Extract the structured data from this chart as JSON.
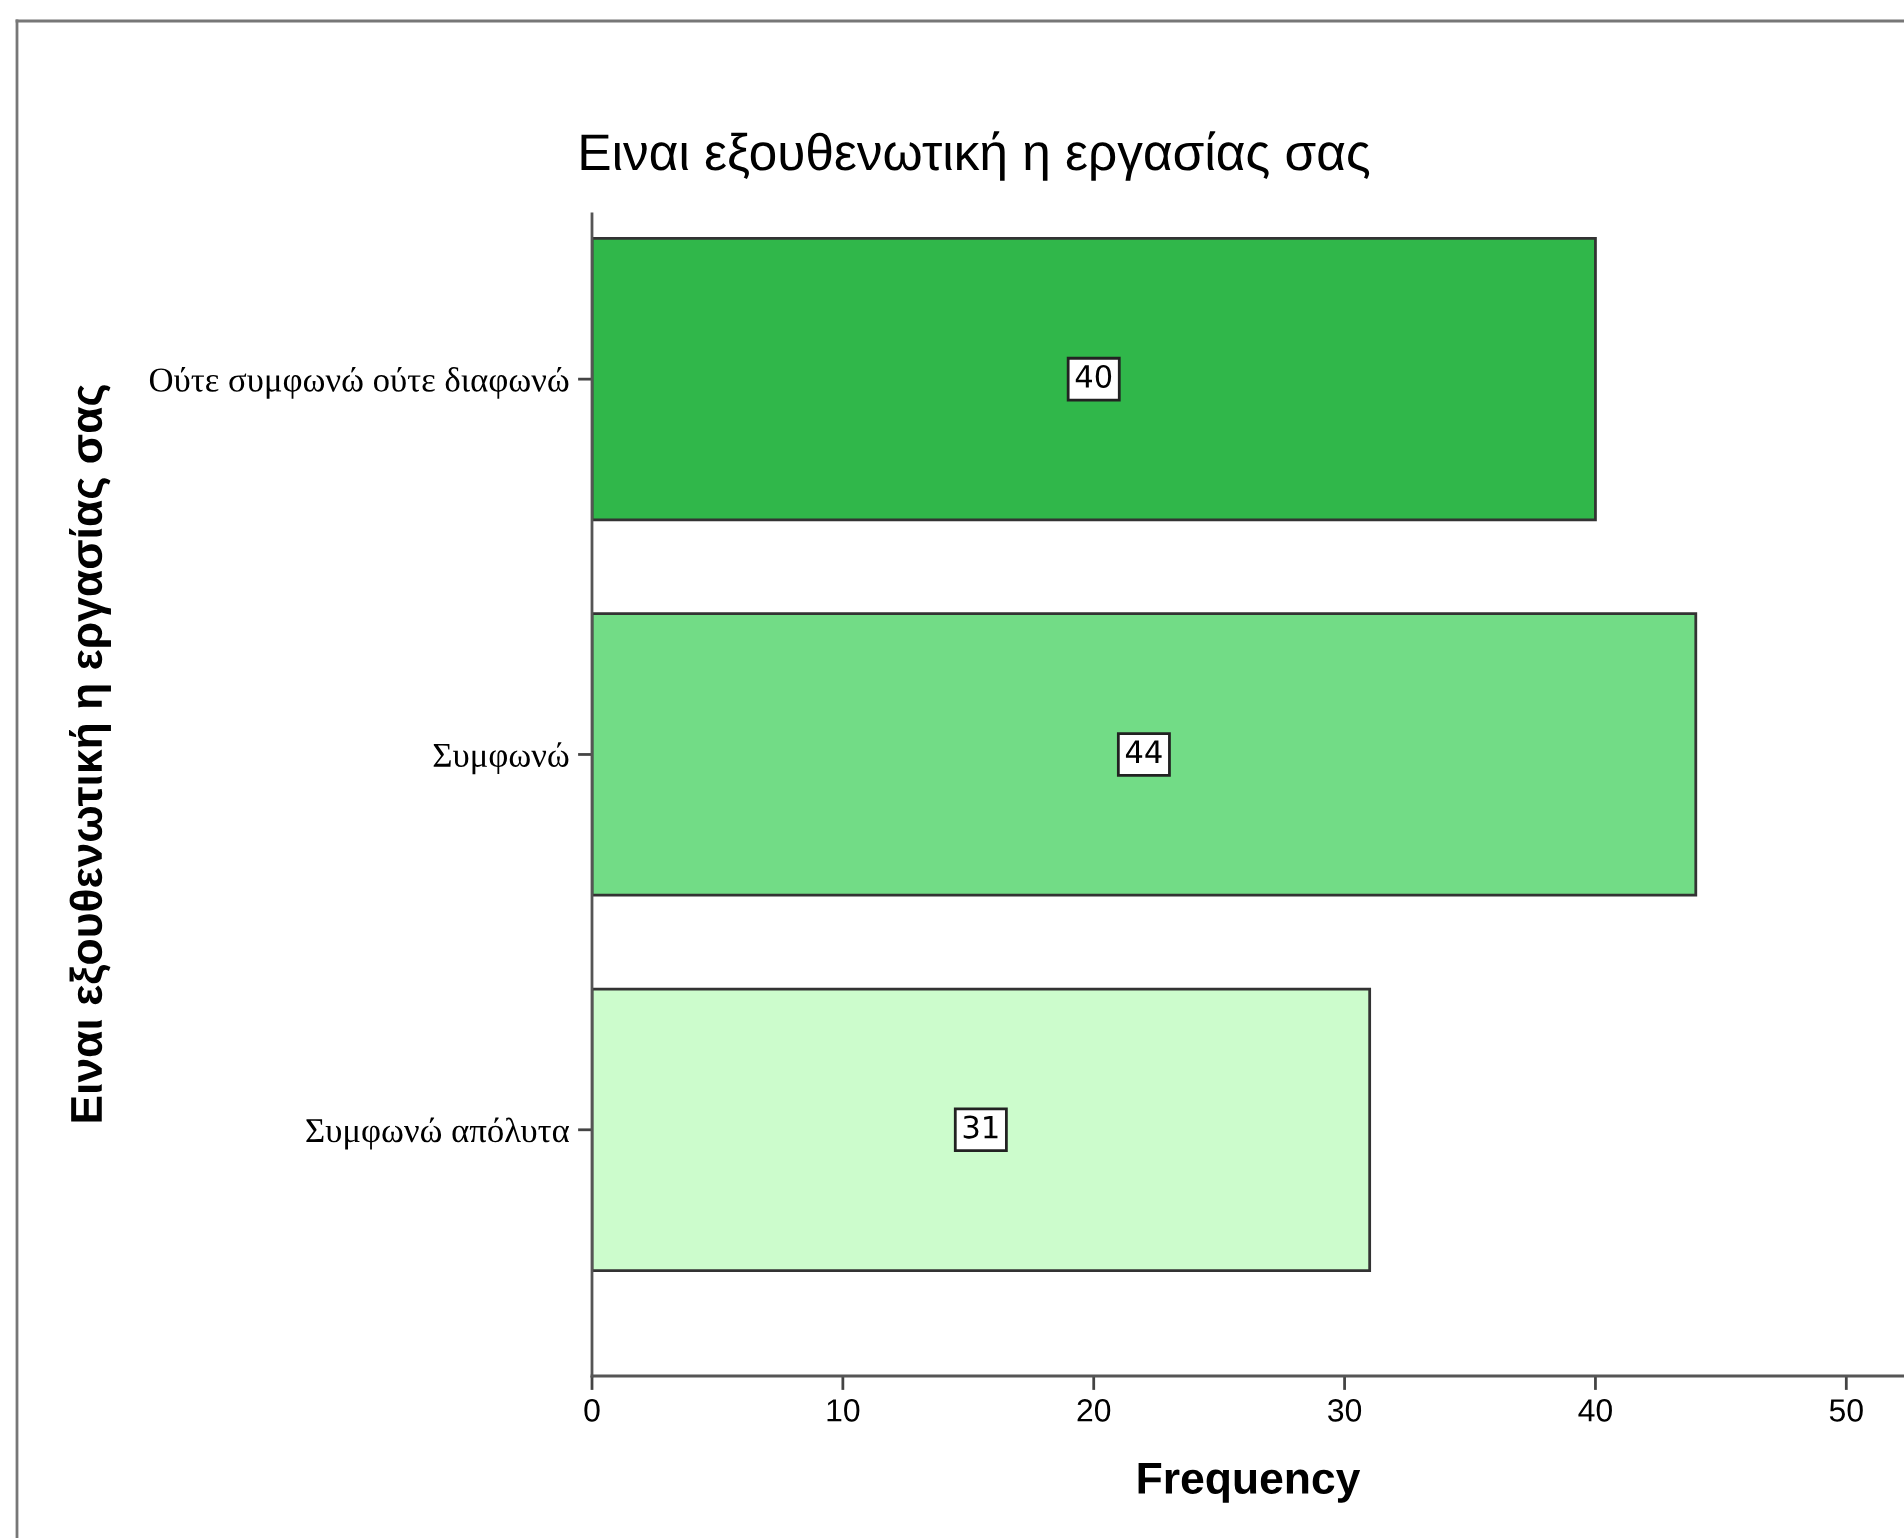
{
  "chart_data": {
    "type": "bar",
    "orientation": "horizontal",
    "title": "Ειναι εξουθενωτική η εργασίας σας",
    "xlabel": "Frequency",
    "ylabel": "Ειναι εξουθενωτική η εργασίας σας",
    "categories": [
      "Ούτε συμφωνώ ούτε διαφωνώ",
      "Συμφωνώ",
      "Συμφωνώ απόλυτα"
    ],
    "values": [
      40,
      44,
      31
    ],
    "colors": [
      "#30b74a",
      "#72dc86",
      "#ccfccc"
    ],
    "xlim": [
      0,
      52.3
    ],
    "xticks": [
      0,
      10,
      20,
      30,
      40,
      50
    ],
    "data_labels": true
  }
}
